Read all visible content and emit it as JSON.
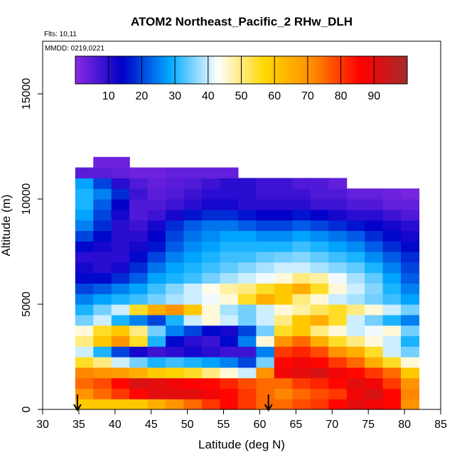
{
  "chart_data": {
    "type": "heatmap",
    "title": "ATOM2 Northeast_Pacific_2 RHw_DLH",
    "flights_label": "Flts: 10,11",
    "dates_label": "MMDD: 0219,0221",
    "xlabel": "Latitude (deg N)",
    "ylabel": "Altitude (m)",
    "xlim": [
      30,
      85
    ],
    "ylim": [
      0,
      17500
    ],
    "x_ticks": [
      "30",
      "35",
      "40",
      "45",
      "50",
      "55",
      "60",
      "65",
      "70",
      "75",
      "80",
      "85"
    ],
    "y_ticks": [
      "0",
      "5000",
      "10000",
      "15000"
    ],
    "colorbar": {
      "range": [
        0,
        100
      ],
      "ticks": [
        "10",
        "20",
        "30",
        "40",
        "50",
        "60",
        "70",
        "80",
        "90"
      ],
      "colors": [
        "#8a2be2",
        "#0000c8",
        "#00aaff",
        "#ffffff",
        "#ffd700",
        "#ff8c00",
        "#ff0000",
        "#a52a2a"
      ]
    },
    "arrow_latitudes": [
      34.8,
      61.2
    ],
    "lat_bins": [
      34.5,
      37,
      39.5,
      42,
      44.5,
      47,
      49.5,
      52,
      54.5,
      57,
      59.5,
      62,
      64.5,
      67,
      69.5,
      72,
      74.5,
      77,
      79.5
    ],
    "alt_bins": [
      0,
      500,
      1000,
      1500,
      2000,
      2500,
      3000,
      3500,
      4000,
      4500,
      5000,
      5500,
      6000,
      6500,
      7000,
      7500,
      8000,
      8500,
      9000,
      9500,
      10000,
      10500,
      11000,
      11500
    ],
    "rhw_grid": [
      [
        60,
        60,
        60,
        60,
        65,
        70,
        75,
        80,
        85,
        80,
        75,
        75,
        78,
        80,
        85,
        90,
        88,
        85,
        70
      ],
      [
        70,
        75,
        80,
        85,
        90,
        90,
        90,
        88,
        85,
        80,
        75,
        72,
        75,
        78,
        80,
        88,
        92,
        85,
        72
      ],
      [
        75,
        78,
        85,
        92,
        90,
        88,
        86,
        85,
        82,
        78,
        75,
        75,
        80,
        82,
        85,
        90,
        88,
        80,
        70
      ],
      [
        72,
        70,
        68,
        65,
        60,
        58,
        55,
        50,
        45,
        40,
        70,
        88,
        90,
        92,
        88,
        85,
        80,
        75,
        60
      ],
      [
        55,
        50,
        40,
        35,
        30,
        32,
        30,
        28,
        25,
        20,
        35,
        85,
        88,
        85,
        80,
        75,
        65,
        55,
        45
      ],
      [
        40,
        30,
        20,
        12,
        8,
        10,
        12,
        10,
        8,
        8,
        25,
        80,
        82,
        78,
        70,
        65,
        55,
        40,
        35
      ],
      [
        50,
        60,
        70,
        55,
        30,
        15,
        10,
        8,
        15,
        25,
        45,
        70,
        75,
        65,
        55,
        50,
        45,
        40,
        30
      ],
      [
        45,
        55,
        60,
        50,
        35,
        25,
        20,
        15,
        12,
        20,
        35,
        55,
        60,
        50,
        45,
        40,
        42,
        45,
        35
      ],
      [
        35,
        40,
        30,
        25,
        20,
        30,
        40,
        45,
        40,
        35,
        40,
        50,
        60,
        65,
        55,
        40,
        35,
        30,
        25
      ],
      [
        30,
        35,
        40,
        55,
        65,
        70,
        60,
        45,
        38,
        35,
        40,
        45,
        48,
        52,
        55,
        50,
        45,
        40,
        35
      ],
      [
        25,
        28,
        30,
        32,
        35,
        38,
        40,
        42,
        45,
        55,
        65,
        60,
        50,
        45,
        40,
        38,
        35,
        32,
        28
      ],
      [
        20,
        22,
        25,
        28,
        32,
        36,
        40,
        44,
        48,
        50,
        55,
        60,
        65,
        55,
        45,
        40,
        36,
        30,
        25
      ],
      [
        15,
        15,
        18,
        22,
        28,
        30,
        32,
        35,
        38,
        40,
        42,
        45,
        50,
        48,
        42,
        38,
        34,
        28,
        22
      ],
      [
        12,
        10,
        12,
        18,
        24,
        28,
        30,
        32,
        34,
        36,
        38,
        40,
        40,
        38,
        36,
        34,
        30,
        25,
        20
      ],
      [
        10,
        10,
        10,
        15,
        20,
        25,
        28,
        30,
        32,
        32,
        34,
        35,
        36,
        34,
        32,
        30,
        26,
        22,
        18
      ],
      [
        15,
        12,
        10,
        12,
        16,
        22,
        26,
        28,
        30,
        30,
        30,
        30,
        32,
        30,
        28,
        26,
        22,
        18,
        15
      ],
      [
        20,
        15,
        10,
        10,
        14,
        20,
        24,
        26,
        28,
        28,
        26,
        26,
        28,
        26,
        24,
        22,
        18,
        15,
        12
      ],
      [
        25,
        18,
        10,
        8,
        12,
        18,
        22,
        24,
        24,
        22,
        20,
        20,
        22,
        20,
        18,
        16,
        14,
        12,
        10
      ],
      [
        28,
        20,
        12,
        6,
        8,
        12,
        16,
        18,
        18,
        16,
        14,
        14,
        16,
        14,
        12,
        10,
        10,
        8,
        6
      ],
      [
        30,
        22,
        14,
        6,
        6,
        8,
        10,
        12,
        12,
        10,
        10,
        10,
        10,
        8,
        8,
        6,
        6,
        4,
        4
      ],
      [
        30,
        25,
        18,
        8,
        5,
        6,
        8,
        10,
        10,
        10,
        8,
        8,
        8,
        6,
        6,
        4,
        4,
        3,
        2
      ],
      [
        28,
        20,
        10,
        6,
        4,
        5,
        6,
        8,
        10,
        10,
        8,
        8,
        6,
        6,
        4,
        null,
        null,
        null,
        null
      ],
      [
        5,
        5,
        4,
        3,
        3,
        4,
        4,
        4,
        4,
        null,
        null,
        null,
        null,
        null,
        null,
        null,
        null,
        null,
        null
      ],
      [
        null,
        3,
        3,
        null,
        null,
        null,
        null,
        null,
        null,
        null,
        null,
        null,
        null,
        null,
        null,
        null,
        null,
        null,
        null
      ]
    ]
  }
}
